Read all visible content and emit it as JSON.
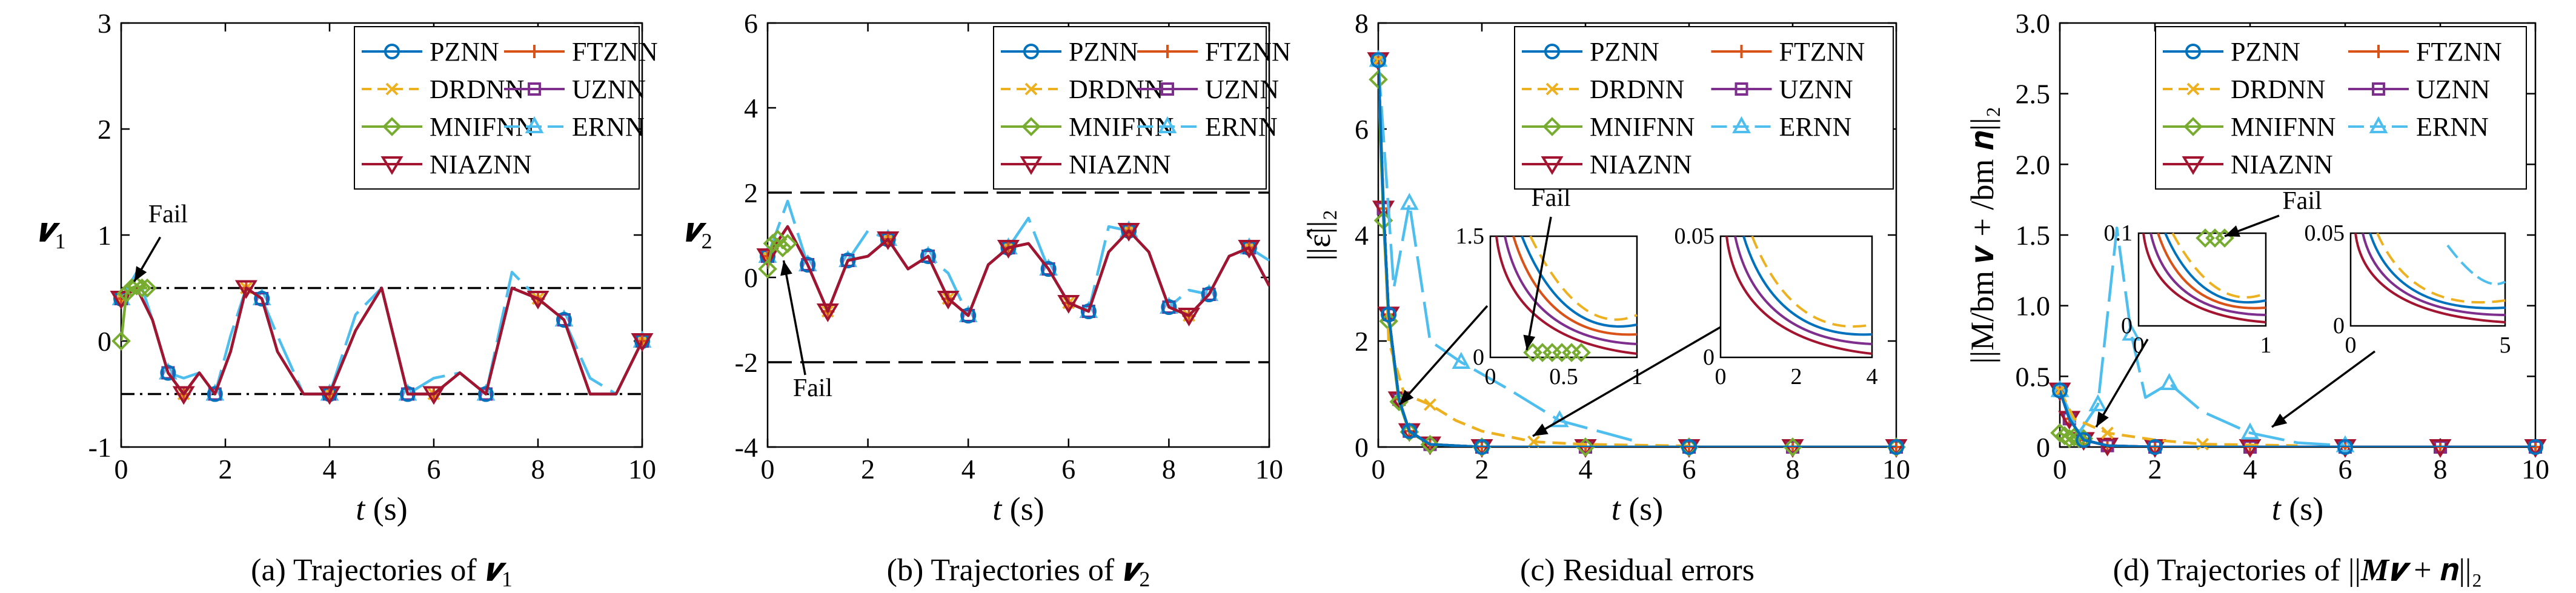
{
  "colors": {
    "PZNN": "#0072BD",
    "FTZNN": "#D95319",
    "DRDNN": "#EDB120",
    "UZNN": "#7E2F8E",
    "MNIFNN": "#77AC30",
    "ERNN": "#4DBEEE",
    "NIAZNN": "#A2142F"
  },
  "legend_order": [
    "PZNN",
    "FTZNN",
    "DRDNN",
    "UZNN",
    "MNIFNN",
    "ERNN",
    "NIAZNN"
  ],
  "chart_data": [
    {
      "id": "a",
      "type": "line",
      "caption_pre": "(a) Trajectories of ",
      "caption_sym": "𝒗",
      "caption_sub": "1",
      "ylabel_sym": "𝒗",
      "ylabel_sub": "1",
      "xlabel_t": "t",
      "xlabel_unit": " (s)",
      "xlim": [
        0,
        10
      ],
      "ylim": [
        -1,
        3
      ],
      "xticks": [
        "0",
        "2",
        "4",
        "6",
        "8",
        "10"
      ],
      "yticks": [
        "-1",
        "0",
        "1",
        "2",
        "3"
      ],
      "bounds": [
        0.5,
        -0.5
      ],
      "annotation": "Fail",
      "series": [
        {
          "name": "PZNN",
          "x": [
            0,
            0.3,
            0.6,
            0.9,
            1.2,
            1.5,
            1.8,
            2.1,
            2.4,
            2.7,
            3.0,
            3.5,
            4.0,
            4.5,
            5.0,
            5.5,
            6.0,
            6.5,
            7.0,
            7.5,
            8.0,
            8.5,
            9.0,
            9.5,
            10
          ],
          "y": [
            0.4,
            0.5,
            0.2,
            -0.3,
            -0.5,
            -0.3,
            -0.5,
            -0.1,
            0.5,
            0.4,
            -0.1,
            -0.5,
            -0.5,
            0.1,
            0.5,
            -0.5,
            -0.5,
            -0.3,
            -0.5,
            0.5,
            0.4,
            0.2,
            -0.5,
            -0.5,
            0.0
          ]
        }
      ]
    },
    {
      "id": "b",
      "type": "line",
      "caption_pre": "(b) Trajectories of ",
      "caption_sym": "𝒗",
      "caption_sub": "2",
      "ylabel_sym": "𝒗",
      "ylabel_sub": "2",
      "xlabel_t": "t",
      "xlabel_unit": " (s)",
      "xlim": [
        0,
        10
      ],
      "ylim": [
        -4,
        6
      ],
      "xticks": [
        "0",
        "2",
        "4",
        "6",
        "8",
        "10"
      ],
      "yticks": [
        "-4",
        "-2",
        "0",
        "2",
        "4",
        "6"
      ],
      "bounds": [
        2,
        -2
      ],
      "annotation": "Fail",
      "series": [
        {
          "name": "PZNN",
          "x": [
            0,
            0.4,
            0.8,
            1.2,
            1.6,
            2.0,
            2.4,
            2.8,
            3.2,
            3.6,
            4.0,
            4.4,
            4.8,
            5.2,
            5.6,
            6.0,
            6.4,
            6.8,
            7.2,
            7.6,
            8.0,
            8.4,
            8.8,
            9.2,
            9.6,
            10
          ],
          "y": [
            0.5,
            1.2,
            0.3,
            -0.8,
            0.4,
            0.5,
            0.9,
            0.2,
            0.5,
            -0.5,
            -0.9,
            0.3,
            0.7,
            0.8,
            0.2,
            -0.6,
            -0.8,
            0.6,
            1.1,
            0.6,
            -0.7,
            -0.9,
            -0.4,
            0.5,
            0.7,
            -0.2
          ]
        }
      ]
    },
    {
      "id": "c",
      "type": "line",
      "caption_pre": "(c) Residual errors",
      "ylabel": "||ε̂||₂",
      "xlabel_t": "t",
      "xlabel_unit": " (s)",
      "xlim": [
        0,
        10
      ],
      "ylim": [
        0,
        8
      ],
      "xticks": [
        "0",
        "2",
        "4",
        "6",
        "8",
        "10"
      ],
      "yticks": [
        "0",
        "2",
        "4",
        "6",
        "8"
      ],
      "annotation": "Fail",
      "inset1": {
        "xticks": [
          "0",
          "0.5",
          "1"
        ],
        "yticks": [
          "0",
          "1.5"
        ]
      },
      "inset2": {
        "xticks": [
          "0",
          "2",
          "4"
        ],
        "yticks": [
          "0",
          "0.05"
        ]
      },
      "series": [
        {
          "name": "PZNN",
          "x": [
            0,
            0.1,
            0.2,
            0.4,
            0.6,
            1.0,
            2,
            4,
            6,
            8,
            10
          ],
          "y": [
            7.3,
            4.5,
            2.5,
            0.9,
            0.3,
            0.05,
            0,
            0,
            0,
            0,
            0
          ]
        },
        {
          "name": "DRDNN",
          "x": [
            0,
            0.2,
            0.5,
            1.0,
            1.5,
            2.0,
            3.0,
            4.0,
            6.0
          ],
          "y": [
            7.3,
            2.0,
            1.0,
            0.8,
            0.5,
            0.3,
            0.1,
            0.05,
            0.02
          ]
        },
        {
          "name": "ERNN",
          "x": [
            0,
            0.3,
            0.6,
            1.0,
            1.6,
            2.5,
            3.5,
            5.0
          ],
          "y": [
            7.3,
            3.0,
            4.6,
            2.0,
            1.6,
            1.1,
            0.5,
            0.1
          ]
        }
      ]
    },
    {
      "id": "d",
      "type": "line",
      "caption_pre": "(d) Trajectories of ||",
      "caption_mid": "M𝒗",
      "caption_post": " + 𝒏||₂",
      "ylabel": "||M/bm 𝒗 + /bm 𝒏||₂",
      "xlabel_t": "t",
      "xlabel_unit": " (s)",
      "xlim": [
        0,
        10
      ],
      "ylim": [
        0,
        3.0
      ],
      "xticks": [
        "0",
        "2",
        "4",
        "6",
        "8",
        "10"
      ],
      "yticks": [
        "0",
        "0.5",
        "1.0",
        "1.5",
        "2.0",
        "2.5",
        "3.0"
      ],
      "annotation": "Fail",
      "inset1": {
        "xticks": [
          "0",
          "1"
        ],
        "yticks": [
          "0",
          "0.1"
        ]
      },
      "inset2": {
        "xticks": [
          "0",
          "5"
        ],
        "yticks": [
          "0",
          "0.05"
        ]
      },
      "series": [
        {
          "name": "PZNN",
          "x": [
            0,
            0.2,
            0.5,
            1.0,
            2,
            4,
            6,
            8,
            10
          ],
          "y": [
            0.4,
            0.2,
            0.05,
            0.01,
            0,
            0,
            0,
            0,
            0
          ]
        },
        {
          "name": "DRDNN",
          "x": [
            0,
            0.3,
            1.0,
            2.0,
            3.0,
            5.0
          ],
          "y": [
            0.4,
            0.2,
            0.1,
            0.05,
            0.02,
            0.01
          ]
        },
        {
          "name": "ERNN",
          "x": [
            0,
            0.4,
            0.8,
            1.2,
            1.5,
            1.8,
            2.3,
            3.0,
            4.0,
            5.0,
            6.0
          ],
          "y": [
            0.4,
            0.1,
            0.3,
            1.55,
            0.8,
            0.35,
            0.45,
            0.25,
            0.1,
            0.03,
            0.01
          ]
        }
      ]
    }
  ]
}
